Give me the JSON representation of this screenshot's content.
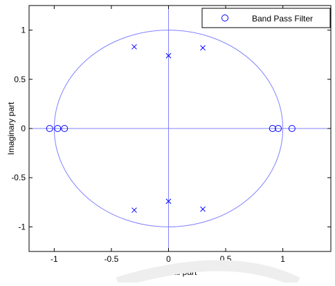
{
  "chart_data": {
    "type": "scatter",
    "title": "",
    "xlabel": "Real part",
    "ylabel": "Imaginary part",
    "xlim": [
      -1.22,
      1.42
    ],
    "ylim": [
      -1.25,
      1.25
    ],
    "x_ticks": [
      -1,
      -0.5,
      0,
      0.5,
      1
    ],
    "x_tick_labels": [
      "-1",
      "-0.5",
      "0",
      "0.5",
      "1"
    ],
    "y_ticks": [
      -1,
      -0.5,
      0,
      0.5,
      1
    ],
    "y_tick_labels": [
      "-1",
      "-0.5",
      "0",
      "0.5",
      "1"
    ],
    "grid": false,
    "legend": {
      "placement": "top-right",
      "entries": [
        "Band Pass Filter"
      ]
    },
    "unit_circle": true,
    "series": [
      {
        "name": "Band Pass Filter",
        "marker": "circle",
        "role": "zeros",
        "x": [
          -1.04,
          -0.97,
          -0.91,
          0.91,
          0.96,
          1.08
        ],
        "y": [
          0,
          0,
          0,
          0,
          0,
          0
        ]
      },
      {
        "marker": "x",
        "role": "poles",
        "x": [
          -0.3,
          0.0,
          0.3,
          -0.3,
          0.0,
          0.3
        ],
        "y": [
          0.83,
          0.74,
          0.82,
          -0.83,
          -0.74,
          -0.82
        ]
      }
    ]
  },
  "colors": {
    "line": "#8080ff",
    "marker": "#0000ff",
    "axes": "#000000",
    "background": "#ffffff",
    "watermark": "#f0f0f0"
  }
}
